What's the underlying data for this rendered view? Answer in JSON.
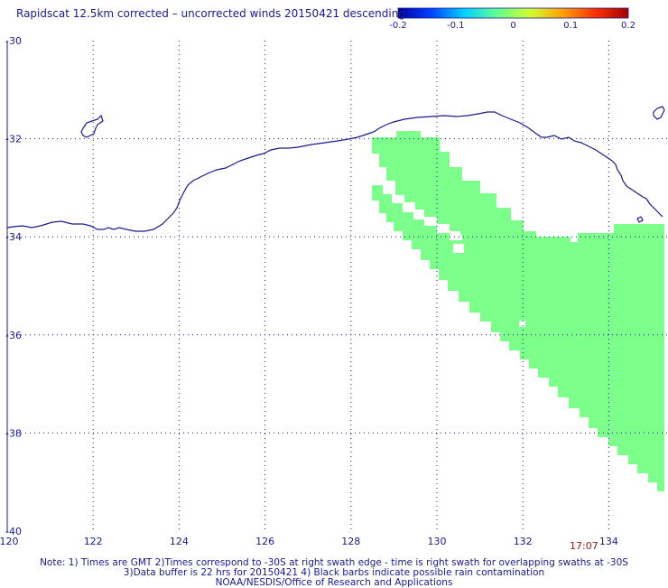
{
  "title": "Rapidscat 12.5km corrected – uncorrected winds 20150421 descending",
  "colorbar": {
    "labels": [
      "-0.2",
      "-0.1",
      "0",
      "0.1",
      "0.2"
    ],
    "values": [
      -0.2,
      -0.1,
      0,
      0.1,
      0.2
    ],
    "colors": [
      "#0000a0",
      "#0040ff",
      "#00d0ff",
      "#60ff90",
      "#d0ff30",
      "#ffa000",
      "#ff3000",
      "#a00000"
    ]
  },
  "map": {
    "lon_ticks": [
      "120",
      "122",
      "124",
      "126",
      "128",
      "130",
      "132",
      "134"
    ],
    "lat_ticks": [
      "-30",
      "-32",
      "-34",
      "-36",
      "-38",
      "-40"
    ],
    "lon_range": [
      120,
      135.5
    ],
    "lat_range": [
      -30,
      -40
    ],
    "grid": "dotted",
    "swath_color": "#7dff8c",
    "coast_color": "#1a1a8c"
  },
  "time_label": "17:07",
  "notes": {
    "line1": "Note: 1) Times are GMT 2)Times correspond to -30S at right swath edge - time is right swath for overlapping swaths at -30S",
    "line2": "3)Data buffer is 22 hrs for 20150421 4) Black barbs indicate possible rain contamination",
    "line3": "NOAA/NESDIS/Office of Research and Applications"
  }
}
